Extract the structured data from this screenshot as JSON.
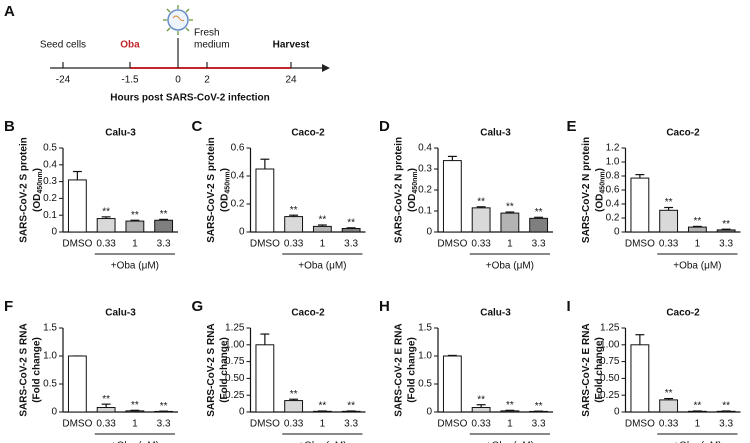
{
  "timeline": {
    "panel": "A",
    "events": [
      "Seed cells",
      "Oba",
      "Fresh",
      "medium",
      "Harvest"
    ],
    "ticks": [
      "-24",
      "-1.5",
      "0",
      "2",
      "24"
    ],
    "xlabel": "Hours post SARS-CoV-2 infection"
  },
  "chart_data": [
    {
      "type": "bar",
      "panel": "B",
      "title": "Calu-3",
      "ylabel": "SARS-CoV-2 S protein",
      "ylabel_sub_parts": [
        "(OD",
        "450nm",
        ")"
      ],
      "categories": [
        "DMSO",
        "0.33",
        "1",
        "3.3"
      ],
      "group_label": "+Oba (μM)",
      "values": [
        0.31,
        0.08,
        0.065,
        0.07
      ],
      "errors": [
        0.05,
        0.01,
        0.005,
        0.005
      ],
      "annotations": [
        null,
        "**",
        "**",
        "**"
      ],
      "colors": [
        "#ffffff",
        "#d9d9d9",
        "#b3b3b3",
        "#7f7f7f"
      ],
      "ylim": [
        0,
        0.5
      ],
      "yticks": [
        0,
        0.1,
        0.2,
        0.3,
        0.4,
        0.5
      ]
    },
    {
      "type": "bar",
      "panel": "C",
      "title": "Caco-2",
      "ylabel": "SARS-CoV-2 S protein",
      "ylabel_sub_parts": [
        "(OD",
        "450nm",
        ")"
      ],
      "categories": [
        "DMSO",
        "0.33",
        "1",
        "3.3"
      ],
      "group_label": "+Oba (μM)",
      "values": [
        0.45,
        0.11,
        0.04,
        0.025
      ],
      "errors": [
        0.07,
        0.01,
        0.01,
        0.005
      ],
      "annotations": [
        null,
        "**",
        "**",
        "**"
      ],
      "colors": [
        "#ffffff",
        "#d9d9d9",
        "#b3b3b3",
        "#7f7f7f"
      ],
      "ylim": [
        0,
        0.6
      ],
      "yticks": [
        0,
        0.2,
        0.4,
        0.6
      ]
    },
    {
      "type": "bar",
      "panel": "D",
      "title": "Calu-3",
      "ylabel": "SARS-CoV-2 N protein",
      "ylabel_sub_parts": [
        "(OD",
        "450nm",
        ")"
      ],
      "categories": [
        "DMSO",
        "0.33",
        "1",
        "3.3"
      ],
      "group_label": "+Oba (μM)",
      "values": [
        0.34,
        0.115,
        0.09,
        0.065
      ],
      "errors": [
        0.02,
        0.005,
        0.005,
        0.005
      ],
      "annotations": [
        null,
        "**",
        "**",
        "**"
      ],
      "colors": [
        "#ffffff",
        "#d9d9d9",
        "#b3b3b3",
        "#7f7f7f"
      ],
      "ylim": [
        0,
        0.4
      ],
      "yticks": [
        0,
        0.1,
        0.2,
        0.3,
        0.4
      ]
    },
    {
      "type": "bar",
      "panel": "E",
      "title": "Caco-2",
      "ylabel": "SARS-CoV-2 N protein",
      "ylabel_sub_parts": [
        "(OD",
        "450nm",
        ")"
      ],
      "categories": [
        "DMSO",
        "0.33",
        "1",
        "3.3"
      ],
      "group_label": "+Oba (μM)",
      "values": [
        0.77,
        0.31,
        0.07,
        0.03
      ],
      "errors": [
        0.05,
        0.04,
        0.01,
        0.01
      ],
      "annotations": [
        null,
        "**",
        "**",
        "**"
      ],
      "colors": [
        "#ffffff",
        "#d9d9d9",
        "#b3b3b3",
        "#7f7f7f"
      ],
      "ylim": [
        0,
        1.2
      ],
      "yticks": [
        0,
        0.2,
        0.4,
        0.6,
        0.8,
        {
          "value": 1.0,
          "label": "1.0"
        },
        1.2
      ]
    },
    {
      "type": "bar",
      "panel": "F",
      "title": "Calu-3",
      "ylabel": "SARS-CoV-2 S RNA",
      "ylabel2": "(Fold change)",
      "categories": [
        "DMSO",
        "0.33",
        "1",
        "3.3"
      ],
      "group_label": "+Oba (μM)",
      "values": [
        1.0,
        0.08,
        0.02,
        0.01
      ],
      "errors": [
        0,
        0.06,
        0.01,
        0.005
      ],
      "annotations": [
        null,
        "**",
        "**",
        "**"
      ],
      "colors": [
        "#ffffff",
        "#d9d9d9",
        "#b3b3b3",
        "#7f7f7f"
      ],
      "ylim": [
        0,
        1.5
      ],
      "yticks": [
        0,
        0.5,
        {
          "value": 1.0,
          "label": "1.0"
        },
        1.5
      ]
    },
    {
      "type": "bar",
      "panel": "G",
      "title": "Caco-2",
      "ylabel": "SARS-CoV-2 S RNA",
      "ylabel2": "(Fold change)",
      "categories": [
        "DMSO",
        "0.33",
        "1",
        "3.3"
      ],
      "group_label": "+Oba (μM)",
      "values": [
        1.0,
        0.17,
        0.01,
        0.01
      ],
      "errors": [
        0.16,
        0.02,
        0.005,
        0.005
      ],
      "annotations": [
        null,
        "**",
        "**",
        "**"
      ],
      "colors": [
        "#ffffff",
        "#d9d9d9",
        "#b3b3b3",
        "#7f7f7f"
      ],
      "ylim": [
        0,
        1.25
      ],
      "yticks": [
        0,
        0.25,
        {
          "value": 0.5,
          "label": "0.50"
        },
        0.75,
        {
          "value": 1.0,
          "label": "1.00"
        },
        1.25
      ]
    },
    {
      "type": "bar",
      "panel": "H",
      "title": "Calu-3",
      "ylabel": "SARS-CoV-2 E RNA",
      "ylabel2": "(Fold change)",
      "categories": [
        "DMSO",
        "0.33",
        "1",
        "3.3"
      ],
      "group_label": "+Oba (μM)",
      "values": [
        1.0,
        0.08,
        0.02,
        0.01
      ],
      "errors": [
        0.01,
        0.05,
        0.01,
        0.005
      ],
      "annotations": [
        null,
        "**",
        "**",
        "**"
      ],
      "colors": [
        "#ffffff",
        "#d9d9d9",
        "#b3b3b3",
        "#7f7f7f"
      ],
      "ylim": [
        0,
        1.5
      ],
      "yticks": [
        0,
        0.5,
        {
          "value": 1.0,
          "label": "1.0"
        },
        1.5
      ]
    },
    {
      "type": "bar",
      "panel": "I",
      "title": "Caco-2",
      "ylabel": "SARS-CoV-2 E RNA",
      "ylabel2": "(Fold change)",
      "categories": [
        "DMSO",
        "0.33",
        "1",
        "3.3"
      ],
      "group_label": "+Oba (μM)",
      "values": [
        1.0,
        0.18,
        0.01,
        0.01
      ],
      "errors": [
        0.15,
        0.02,
        0.005,
        0.005
      ],
      "annotations": [
        null,
        "**",
        "**",
        "**"
      ],
      "colors": [
        "#ffffff",
        "#d9d9d9",
        "#b3b3b3",
        "#7f7f7f"
      ],
      "ylim": [
        0,
        1.25
      ],
      "yticks": [
        0,
        0.25,
        {
          "value": 0.5,
          "label": "0.50"
        },
        0.75,
        {
          "value": 1.0,
          "label": "1.00"
        },
        1.25
      ]
    }
  ]
}
